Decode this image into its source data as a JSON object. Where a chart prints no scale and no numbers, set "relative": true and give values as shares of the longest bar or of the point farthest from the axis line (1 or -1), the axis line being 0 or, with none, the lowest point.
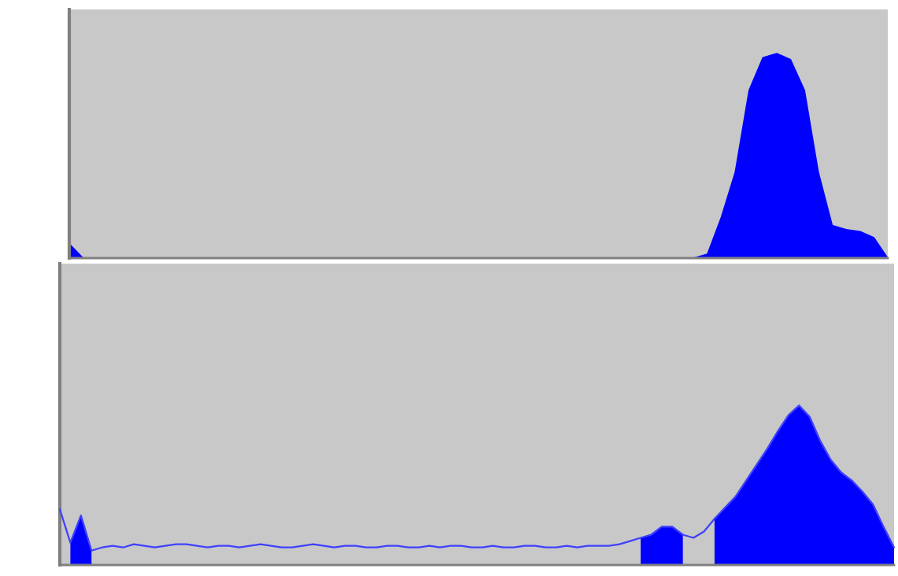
{
  "chart_data": [
    {
      "type": "area",
      "relative": true,
      "categories": [
        null,
        null,
        null,
        null,
        null,
        null,
        null,
        null,
        null,
        null,
        null,
        null,
        null,
        null,
        null,
        null,
        null,
        null,
        null,
        null,
        null,
        null,
        null,
        null,
        null,
        null,
        null,
        null,
        null,
        null,
        null,
        null,
        null,
        null,
        null,
        null,
        null,
        null,
        null,
        null,
        null,
        null,
        null,
        null,
        null,
        null,
        null,
        null,
        null,
        null,
        null,
        null,
        null,
        null,
        null,
        null,
        null,
        null,
        null,
        null
      ],
      "series": [
        {
          "type": "area",
          "color": "#0000ff",
          "values": [
            0.07,
            0,
            0,
            0,
            0,
            0,
            0,
            0,
            0,
            0,
            0,
            0,
            0,
            0,
            0,
            0,
            0,
            0,
            0,
            0,
            0,
            0,
            0,
            0,
            0,
            0,
            0,
            0,
            0,
            0,
            0,
            0,
            0,
            0,
            0,
            0,
            0,
            0,
            0,
            0,
            0,
            0,
            0,
            0,
            0,
            0,
            0.02,
            0.2,
            0.42,
            0.82,
            0.98,
            1.0,
            0.97,
            0.82,
            0.42,
            0.16,
            0.14,
            0.13,
            0.1,
            0
          ]
        }
      ]
    },
    {
      "type": "area",
      "relative": true,
      "categories": [
        null,
        null,
        null,
        null,
        null,
        null,
        null,
        null,
        null,
        null,
        null,
        null,
        null,
        null,
        null,
        null,
        null,
        null,
        null,
        null,
        null,
        null,
        null,
        null,
        null,
        null,
        null,
        null,
        null,
        null,
        null,
        null,
        null,
        null,
        null,
        null,
        null,
        null,
        null,
        null,
        null,
        null,
        null,
        null,
        null,
        null,
        null,
        null,
        null,
        null,
        null,
        null,
        null,
        null,
        null,
        null,
        null,
        null,
        null,
        null,
        null,
        null,
        null,
        null,
        null,
        null,
        null,
        null,
        null,
        null,
        null,
        null,
        null,
        null,
        null,
        null,
        null,
        null,
        null,
        null
      ],
      "series": [
        {
          "type": "line",
          "color": "#4040ff",
          "values": [
            0.35,
            0.14,
            0.31,
            0.09,
            0.11,
            0.12,
            0.11,
            0.13,
            0.12,
            0.11,
            0.12,
            0.13,
            0.13,
            0.12,
            0.11,
            0.12,
            0.12,
            0.11,
            0.12,
            0.13,
            0.12,
            0.11,
            0.11,
            0.12,
            0.13,
            0.12,
            0.11,
            0.12,
            0.12,
            0.11,
            0.11,
            0.12,
            0.12,
            0.11,
            0.11,
            0.12,
            0.11,
            0.12,
            0.12,
            0.11,
            0.11,
            0.12,
            0.11,
            0.11,
            0.12,
            0.12,
            0.11,
            0.11,
            0.12,
            0.11,
            0.12,
            0.12,
            0.12,
            0.13,
            0.15,
            0.17,
            0.19,
            0.24,
            0.24,
            0.19,
            0.17,
            0.21,
            0.29,
            0.36,
            0.43,
            0.53,
            0.63,
            0.73,
            0.84,
            0.94,
            1.0,
            0.93,
            0.78,
            0.66,
            0.58,
            0.53,
            0.46,
            0.38,
            0.24,
            0.11
          ]
        },
        {
          "type": "area",
          "color": "#0000ff",
          "values": [
            null,
            0.14,
            0.31,
            0.09,
            null,
            null,
            null,
            null,
            null,
            null,
            null,
            null,
            null,
            null,
            null,
            null,
            null,
            null,
            null,
            null,
            null,
            null,
            null,
            null,
            null,
            null,
            null,
            null,
            null,
            null,
            null,
            null,
            null,
            null,
            null,
            null,
            null,
            null,
            null,
            null,
            null,
            null,
            null,
            null,
            null,
            null,
            null,
            null,
            null,
            null,
            null,
            null,
            null,
            null,
            null,
            0.17,
            0.19,
            0.24,
            0.24,
            0.19,
            null,
            null,
            0.29,
            0.36,
            0.43,
            0.53,
            0.63,
            0.73,
            0.84,
            0.94,
            1.0,
            0.93,
            0.78,
            0.66,
            0.58,
            0.53,
            0.46,
            0.38,
            0.24,
            0.11
          ]
        }
      ]
    }
  ]
}
